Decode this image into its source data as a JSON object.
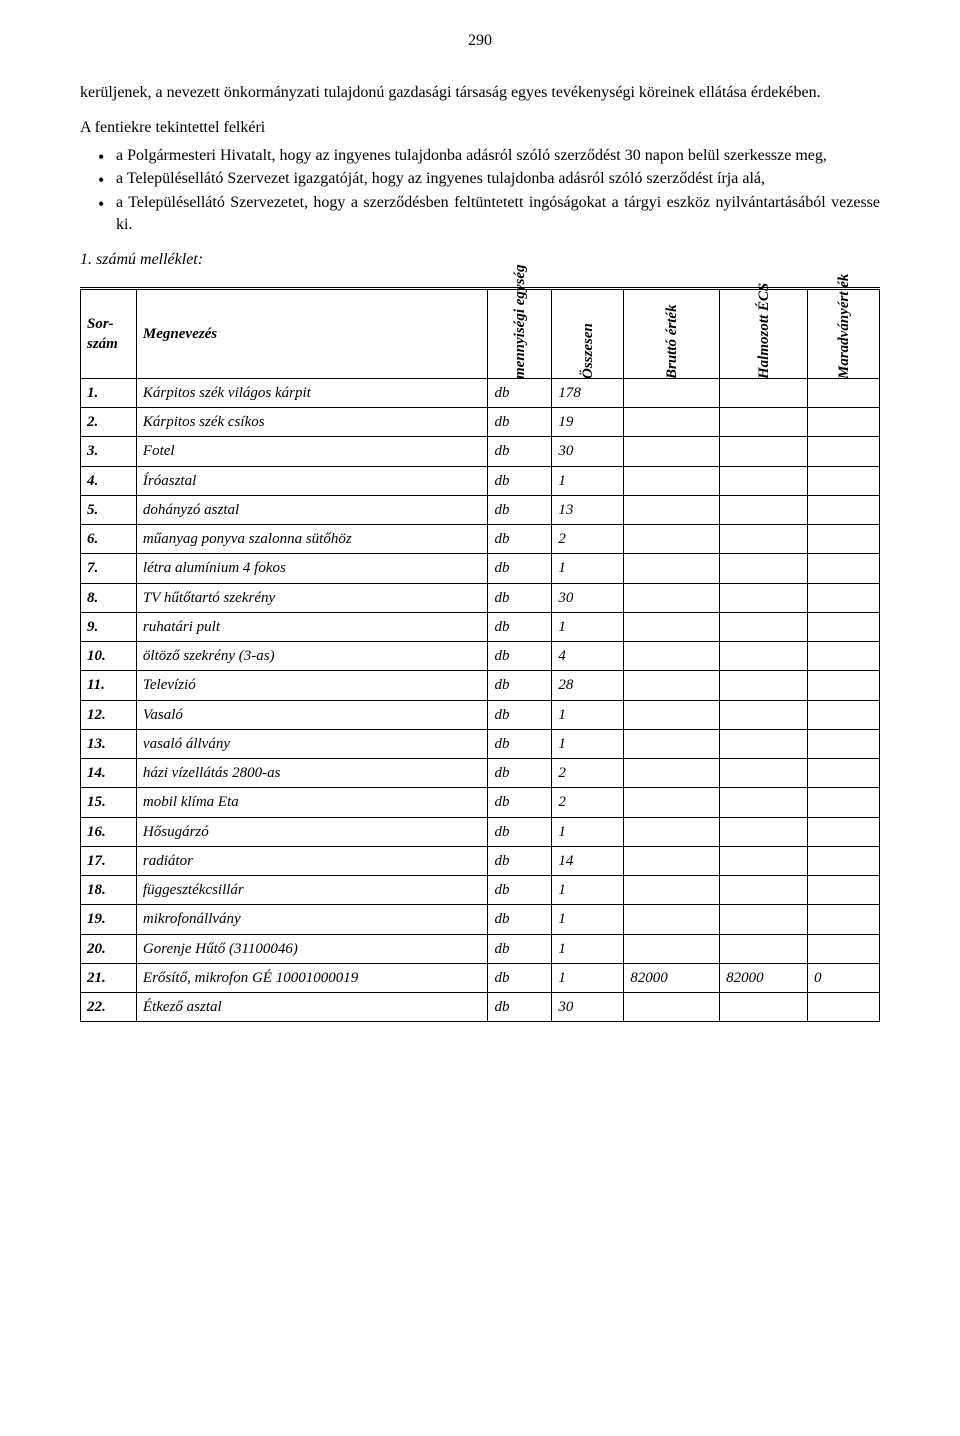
{
  "page_number": "290",
  "para1": "kerüljenek, a nevezett önkormányzati tulajdonú gazdasági társaság egyes tevékenységi köreinek ellátása érdekében.",
  "para2_intro": "A fentiekre tekintettel felkéri",
  "bullets": [
    "a Polgármesteri Hivatalt, hogy az ingyenes tulajdonba adásról szóló szerződést 30 napon belül szerkessze meg,",
    "a Településellátó Szervezet igazgatóját, hogy az ingyenes tulajdonba adásról szóló szerződést írja alá,",
    "a Településellátó Szervezetet, hogy a szerződésben feltüntetett ingóságokat a tárgyi eszköz nyilvántartásából vezesse ki."
  ],
  "attachment_label": "1. számú melléklet:",
  "table": {
    "headers": {
      "sorszam": "Sor-szám",
      "megnevezes": "Megnevezés",
      "egyseg": "mennyiségi egység",
      "osszesen": "Összesen",
      "brutto": "Bruttó érték",
      "ecs": "Halmozott ÉCS",
      "maradvany": "Maradványért ék"
    },
    "rows": [
      {
        "n": "1.",
        "name": "Kárpitos szék világos kárpit",
        "unit": "db",
        "qty": "178",
        "b": "",
        "e": "",
        "m": ""
      },
      {
        "n": "2.",
        "name": "Kárpitos szék csíkos",
        "unit": "db",
        "qty": "19",
        "b": "",
        "e": "",
        "m": ""
      },
      {
        "n": "3.",
        "name": "Fotel",
        "unit": "db",
        "qty": "30",
        "b": "",
        "e": "",
        "m": ""
      },
      {
        "n": "4.",
        "name": "Íróasztal",
        "unit": "db",
        "qty": "1",
        "b": "",
        "e": "",
        "m": ""
      },
      {
        "n": "5.",
        "name": "dohányzó asztal",
        "unit": "db",
        "qty": "13",
        "b": "",
        "e": "",
        "m": ""
      },
      {
        "n": "6.",
        "name": "műanyag ponyva szalonna sütőhöz",
        "unit": "db",
        "qty": "2",
        "b": "",
        "e": "",
        "m": ""
      },
      {
        "n": "7.",
        "name": "létra alumínium 4 fokos",
        "unit": "db",
        "qty": "1",
        "b": "",
        "e": "",
        "m": ""
      },
      {
        "n": "8.",
        "name": "TV hűtőtartó szekrény",
        "unit": "db",
        "qty": "30",
        "b": "",
        "e": "",
        "m": ""
      },
      {
        "n": "9.",
        "name": "ruhatári pult",
        "unit": "db",
        "qty": "1",
        "b": "",
        "e": "",
        "m": ""
      },
      {
        "n": "10.",
        "name": "öltöző szekrény (3-as)",
        "unit": "db",
        "qty": "4",
        "b": "",
        "e": "",
        "m": ""
      },
      {
        "n": "11.",
        "name": "Televízió",
        "unit": "db",
        "qty": "28",
        "b": "",
        "e": "",
        "m": ""
      },
      {
        "n": "12.",
        "name": "Vasaló",
        "unit": "db",
        "qty": "1",
        "b": "",
        "e": "",
        "m": ""
      },
      {
        "n": "13.",
        "name": "vasaló állvány",
        "unit": "db",
        "qty": "1",
        "b": "",
        "e": "",
        "m": ""
      },
      {
        "n": "14.",
        "name": "házi vízellátás 2800-as",
        "unit": "db",
        "qty": "2",
        "b": "",
        "e": "",
        "m": ""
      },
      {
        "n": "15.",
        "name": "mobil klíma Eta",
        "unit": "db",
        "qty": "2",
        "b": "",
        "e": "",
        "m": ""
      },
      {
        "n": "16.",
        "name": "Hősugárzó",
        "unit": "db",
        "qty": "1",
        "b": "",
        "e": "",
        "m": ""
      },
      {
        "n": "17.",
        "name": "radiátor",
        "unit": "db",
        "qty": "14",
        "b": "",
        "e": "",
        "m": ""
      },
      {
        "n": "18.",
        "name": "függesztékcsillár",
        "unit": "db",
        "qty": "1",
        "b": "",
        "e": "",
        "m": ""
      },
      {
        "n": "19.",
        "name": "mikrofonállvány",
        "unit": "db",
        "qty": "1",
        "b": "",
        "e": "",
        "m": ""
      },
      {
        "n": "20.",
        "name": "Gorenje Hűtő (31100046)",
        "unit": "db",
        "qty": "1",
        "b": "",
        "e": "",
        "m": ""
      },
      {
        "n": "21.",
        "name": "Erősítő, mikrofon  GÉ 10001000019",
        "unit": "db",
        "qty": "1",
        "b": "82000",
        "e": "82000",
        "m": "0"
      },
      {
        "n": "22.",
        "name": "Étkező asztal",
        "unit": "db",
        "qty": "30",
        "b": "",
        "e": "",
        "m": ""
      }
    ]
  }
}
